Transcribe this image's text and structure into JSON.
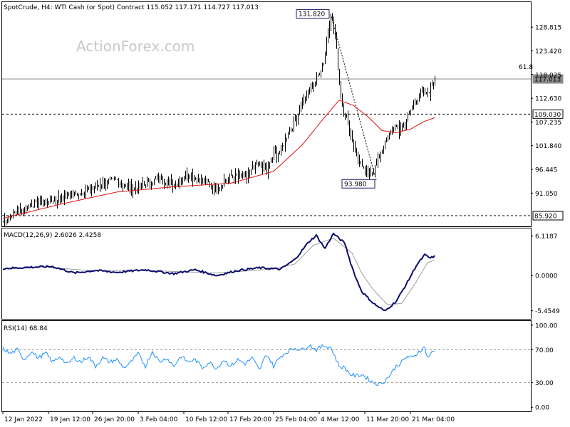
{
  "header": {
    "title": "SpotCrude, H4:  WTI Cash (or Spot) Contract  115.052 117.171 114.727 117.013",
    "watermark": "ActionForex.com"
  },
  "colors": {
    "candle": "#000000",
    "ma": "#e01010",
    "macd_main": "#0a0a70",
    "macd_signal": "#a0a0a0",
    "rsi": "#1e90ff",
    "level_line": "#000000",
    "price_line": "#8a8a8a"
  },
  "chart_data": [
    {
      "type": "candlestick",
      "panel": "price",
      "ylim": [
        83.5,
        134.5
      ],
      "y_ticks": [
        "128.815",
        "123.420",
        "118.025",
        "112.630",
        "107.235",
        "101.840",
        "96.445",
        "91.050"
      ],
      "x_ticks": [
        "12 Jan 2022",
        "19 Jan 12:00",
        "26 Jan 20:00",
        "3 Feb 04:00",
        "10 Feb 12:00",
        "17 Feb 20:00",
        "25 Feb 04:00",
        "4 Mar 12:00",
        "11 Mar 20:00",
        "21 Mar 04:00"
      ],
      "price_anchors": [
        [
          0,
          84.6
        ],
        [
          10,
          86.9
        ],
        [
          20,
          88.5
        ],
        [
          30,
          89.3
        ],
        [
          40,
          89.8
        ],
        [
          50,
          90.8
        ],
        [
          60,
          91.8
        ],
        [
          70,
          93.3
        ],
        [
          80,
          94.0
        ],
        [
          90,
          92.0
        ],
        [
          100,
          93.0
        ],
        [
          110,
          94.5
        ],
        [
          120,
          93.0
        ],
        [
          130,
          95.3
        ],
        [
          140,
          94.0
        ],
        [
          150,
          92.0
        ],
        [
          160,
          95.0
        ],
        [
          170,
          94.5
        ],
        [
          175,
          96.5
        ],
        [
          180,
          97.8
        ],
        [
          185,
          96.0
        ],
        [
          190,
          100.0
        ],
        [
          195,
          100.5
        ],
        [
          200,
          105.0
        ],
        [
          205,
          107.5
        ],
        [
          210,
          112.0
        ],
        [
          215,
          114.5
        ],
        [
          220,
          117.0
        ],
        [
          225,
          121.0
        ],
        [
          228,
          128.0
        ],
        [
          230,
          131.8
        ],
        [
          233,
          127.0
        ],
        [
          236,
          116.0
        ],
        [
          238,
          111.0
        ],
        [
          241,
          108.0
        ],
        [
          244,
          104.0
        ],
        [
          248,
          100.0
        ],
        [
          252,
          96.5
        ],
        [
          256,
          95.5
        ],
        [
          260,
          96.0
        ],
        [
          263,
          99.0
        ],
        [
          266,
          101.0
        ],
        [
          270,
          103.5
        ],
        [
          274,
          106.0
        ],
        [
          278,
          105.5
        ],
        [
          282,
          107.5
        ],
        [
          286,
          110.0
        ],
        [
          290,
          112.5
        ],
        [
          294,
          114.0
        ],
        [
          297,
          113.5
        ],
        [
          300,
          115.0
        ],
        [
          303,
          117.0
        ]
      ],
      "ma_anchors": [
        [
          0,
          85.3
        ],
        [
          40,
          88.5
        ],
        [
          80,
          91.3
        ],
        [
          120,
          92.5
        ],
        [
          160,
          93.3
        ],
        [
          190,
          96.0
        ],
        [
          210,
          102.0
        ],
        [
          225,
          108.0
        ],
        [
          236,
          112.2
        ],
        [
          246,
          111.0
        ],
        [
          256,
          108.5
        ],
        [
          266,
          105.3
        ],
        [
          276,
          104.8
        ],
        [
          286,
          105.6
        ],
        [
          296,
          107.4
        ],
        [
          303,
          108.2
        ]
      ],
      "levels": [
        {
          "value": 117.013,
          "label": "117.013",
          "style": "solid",
          "color": "#8a8a8a"
        },
        {
          "value": 109.03,
          "label": "109.030",
          "style": "dashed"
        },
        {
          "value": 85.92,
          "label": "85.920",
          "style": "dashed"
        }
      ],
      "fib_label": "61.8",
      "fib_value": 117.65,
      "annotations": [
        {
          "label": "131.820",
          "bar": 230,
          "value": 131.82
        },
        {
          "label": "93.980",
          "bar": 262,
          "value": 93.98
        }
      ]
    },
    {
      "type": "line",
      "panel": "macd",
      "title": "MACD(12,26,9) 2.6026 2.4258",
      "ylim": [
        -6.7,
        7.3
      ],
      "y_ticks": [
        "6.1187",
        "0.0000",
        "-5.4549"
      ],
      "macd_anchors": [
        [
          0,
          1.1
        ],
        [
          20,
          1.3
        ],
        [
          35,
          1.4
        ],
        [
          50,
          0.4
        ],
        [
          65,
          0.8
        ],
        [
          80,
          0.5
        ],
        [
          100,
          0.9
        ],
        [
          120,
          0.3
        ],
        [
          135,
          0.9
        ],
        [
          150,
          0.0
        ],
        [
          165,
          0.8
        ],
        [
          180,
          1.2
        ],
        [
          195,
          1.0
        ],
        [
          205,
          2.5
        ],
        [
          215,
          5.3
        ],
        [
          220,
          6.2
        ],
        [
          226,
          4.2
        ],
        [
          232,
          6.5
        ],
        [
          240,
          5.0
        ],
        [
          244,
          2.0
        ],
        [
          248,
          -0.5
        ],
        [
          252,
          -2.5
        ],
        [
          260,
          -4.3
        ],
        [
          268,
          -5.5
        ],
        [
          276,
          -4.0
        ],
        [
          284,
          -1.0
        ],
        [
          290,
          1.5
        ],
        [
          296,
          3.2
        ],
        [
          300,
          2.7
        ],
        [
          303,
          3.0
        ]
      ],
      "signal_anchors": [
        [
          0,
          1.0
        ],
        [
          30,
          1.3
        ],
        [
          60,
          0.8
        ],
        [
          100,
          0.8
        ],
        [
          150,
          0.4
        ],
        [
          190,
          1.0
        ],
        [
          205,
          1.8
        ],
        [
          218,
          4.7
        ],
        [
          232,
          5.8
        ],
        [
          245,
          3.5
        ],
        [
          252,
          0.3
        ],
        [
          260,
          -2.2
        ],
        [
          270,
          -4.5
        ],
        [
          280,
          -4.3
        ],
        [
          290,
          -1.0
        ],
        [
          298,
          2.0
        ],
        [
          303,
          2.4
        ]
      ]
    },
    {
      "type": "line",
      "panel": "rsi",
      "title": "RSI(14) 68.84",
      "ylim": [
        -5,
        105
      ],
      "y_ticks": [
        "100.00",
        "70.00",
        "30.00",
        "0.00"
      ],
      "levels": [
        70,
        30
      ],
      "rsi_anchors": [
        [
          0,
          72
        ],
        [
          5,
          65
        ],
        [
          10,
          70
        ],
        [
          15,
          58
        ],
        [
          20,
          68
        ],
        [
          25,
          60
        ],
        [
          30,
          66
        ],
        [
          35,
          55
        ],
        [
          40,
          62
        ],
        [
          45,
          52
        ],
        [
          50,
          60
        ],
        [
          55,
          55
        ],
        [
          60,
          62
        ],
        [
          65,
          50
        ],
        [
          70,
          60
        ],
        [
          75,
          55
        ],
        [
          80,
          58
        ],
        [
          85,
          48
        ],
        [
          90,
          55
        ],
        [
          95,
          65
        ],
        [
          100,
          50
        ],
        [
          105,
          68
        ],
        [
          110,
          55
        ],
        [
          115,
          60
        ],
        [
          120,
          50
        ],
        [
          125,
          62
        ],
        [
          130,
          55
        ],
        [
          135,
          58
        ],
        [
          140,
          48
        ],
        [
          145,
          55
        ],
        [
          150,
          47
        ],
        [
          155,
          58
        ],
        [
          160,
          50
        ],
        [
          165,
          58
        ],
        [
          170,
          53
        ],
        [
          175,
          60
        ],
        [
          180,
          45
        ],
        [
          185,
          65
        ],
        [
          190,
          50
        ],
        [
          195,
          62
        ],
        [
          200,
          68
        ],
        [
          205,
          72
        ],
        [
          210,
          70
        ],
        [
          215,
          76
        ],
        [
          220,
          70
        ],
        [
          225,
          75
        ],
        [
          230,
          73
        ],
        [
          233,
          62
        ],
        [
          236,
          50
        ],
        [
          240,
          48
        ],
        [
          244,
          40
        ],
        [
          248,
          38
        ],
        [
          252,
          40
        ],
        [
          256,
          35
        ],
        [
          260,
          30
        ],
        [
          264,
          28
        ],
        [
          268,
          32
        ],
        [
          272,
          40
        ],
        [
          276,
          50
        ],
        [
          280,
          55
        ],
        [
          284,
          62
        ],
        [
          288,
          60
        ],
        [
          292,
          68
        ],
        [
          296,
          73
        ],
        [
          298,
          60
        ],
        [
          300,
          65
        ],
        [
          303,
          68
        ]
      ]
    }
  ]
}
